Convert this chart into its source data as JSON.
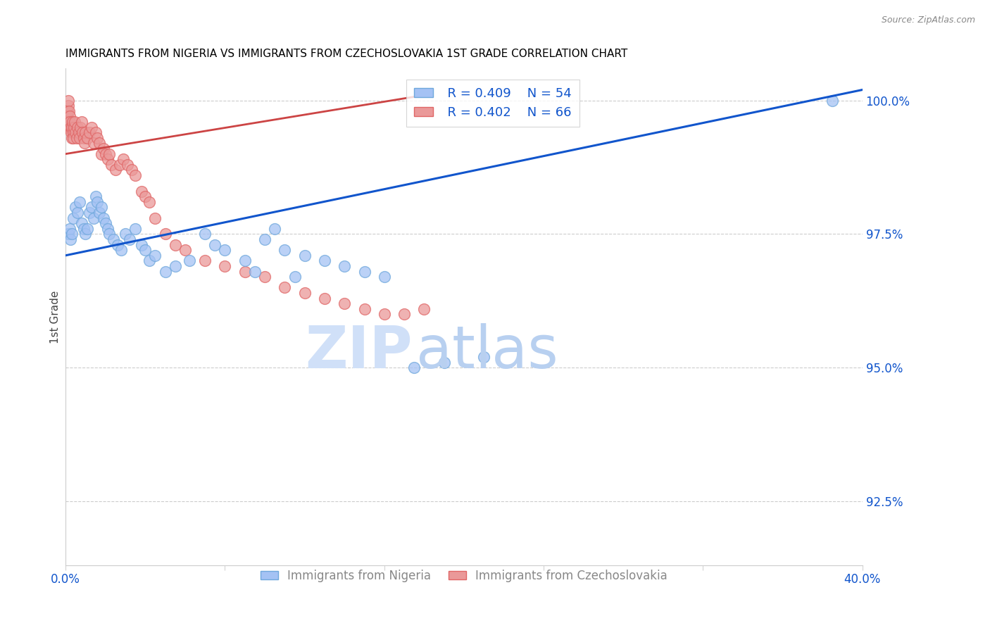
{
  "title": "IMMIGRANTS FROM NIGERIA VS IMMIGRANTS FROM CZECHOSLOVAKIA 1ST GRADE CORRELATION CHART",
  "source": "Source: ZipAtlas.com",
  "ylabel": "1st Grade",
  "y_ticks": [
    92.5,
    95.0,
    97.5,
    100.0
  ],
  "y_tick_labels": [
    "92.5%",
    "95.0%",
    "97.5%",
    "100.0%"
  ],
  "x_min": 0.0,
  "x_max": 40.0,
  "y_min": 91.3,
  "y_max": 100.6,
  "legend_nigeria_R": "R = 0.409",
  "legend_nigeria_N": "N = 54",
  "legend_czech_R": "R = 0.402",
  "legend_czech_N": "N = 66",
  "nigeria_color": "#a4c2f4",
  "czech_color": "#ea9999",
  "nigeria_line_color": "#1155cc",
  "czech_line_color": "#cc4444",
  "nigeria_scatter_edge": "#6fa8dc",
  "czech_scatter_edge": "#e06666",
  "nigeria_x": [
    0.15,
    0.2,
    0.25,
    0.3,
    0.4,
    0.5,
    0.6,
    0.7,
    0.8,
    0.9,
    1.0,
    1.1,
    1.2,
    1.3,
    1.4,
    1.5,
    1.6,
    1.7,
    1.8,
    1.9,
    2.0,
    2.1,
    2.2,
    2.4,
    2.6,
    2.8,
    3.0,
    3.2,
    3.5,
    3.8,
    4.0,
    4.2,
    4.5,
    5.0,
    5.5,
    6.2,
    7.0,
    7.5,
    8.0,
    9.0,
    9.5,
    10.0,
    10.5,
    11.0,
    11.5,
    12.0,
    13.0,
    14.0,
    15.0,
    16.0,
    17.5,
    19.0,
    21.0,
    38.5
  ],
  "nigeria_y": [
    97.5,
    97.6,
    97.4,
    97.5,
    97.8,
    98.0,
    97.9,
    98.1,
    97.7,
    97.6,
    97.5,
    97.6,
    97.9,
    98.0,
    97.8,
    98.2,
    98.1,
    97.9,
    98.0,
    97.8,
    97.7,
    97.6,
    97.5,
    97.4,
    97.3,
    97.2,
    97.5,
    97.4,
    97.6,
    97.3,
    97.2,
    97.0,
    97.1,
    96.8,
    96.9,
    97.0,
    97.5,
    97.3,
    97.2,
    97.0,
    96.8,
    97.4,
    97.6,
    97.2,
    96.7,
    97.1,
    97.0,
    96.9,
    96.8,
    96.7,
    95.0,
    95.1,
    95.2,
    100.0
  ],
  "czech_x": [
    0.05,
    0.08,
    0.1,
    0.12,
    0.15,
    0.18,
    0.2,
    0.22,
    0.25,
    0.28,
    0.3,
    0.32,
    0.35,
    0.38,
    0.4,
    0.42,
    0.45,
    0.5,
    0.55,
    0.6,
    0.65,
    0.7,
    0.75,
    0.8,
    0.85,
    0.9,
    0.95,
    1.0,
    1.1,
    1.2,
    1.3,
    1.4,
    1.5,
    1.6,
    1.7,
    1.8,
    1.9,
    2.0,
    2.1,
    2.2,
    2.3,
    2.5,
    2.7,
    2.9,
    3.1,
    3.3,
    3.5,
    3.8,
    4.0,
    4.2,
    4.5,
    5.0,
    5.5,
    6.0,
    7.0,
    8.0,
    9.0,
    10.0,
    11.0,
    12.0,
    13.0,
    14.0,
    15.0,
    16.0,
    17.0,
    18.0
  ],
  "czech_y": [
    99.5,
    99.7,
    99.8,
    99.9,
    100.0,
    99.8,
    99.7,
    99.6,
    99.5,
    99.4,
    99.3,
    99.5,
    99.6,
    99.4,
    99.3,
    99.5,
    99.6,
    99.4,
    99.3,
    99.5,
    99.4,
    99.3,
    99.5,
    99.6,
    99.4,
    99.3,
    99.2,
    99.4,
    99.3,
    99.4,
    99.5,
    99.2,
    99.4,
    99.3,
    99.2,
    99.0,
    99.1,
    99.0,
    98.9,
    99.0,
    98.8,
    98.7,
    98.8,
    98.9,
    98.8,
    98.7,
    98.6,
    98.3,
    98.2,
    98.1,
    97.8,
    97.5,
    97.3,
    97.2,
    97.0,
    96.9,
    96.8,
    96.7,
    96.5,
    96.4,
    96.3,
    96.2,
    96.1,
    96.0,
    96.0,
    96.1
  ],
  "nig_line_x": [
    0.0,
    40.0
  ],
  "nig_line_y": [
    97.1,
    100.2
  ],
  "czech_line_x": [
    0.0,
    18.0
  ],
  "czech_line_y": [
    99.0,
    100.1
  ],
  "watermark_zip_color": "#d0e0f8",
  "watermark_atlas_color": "#b8d0f0"
}
